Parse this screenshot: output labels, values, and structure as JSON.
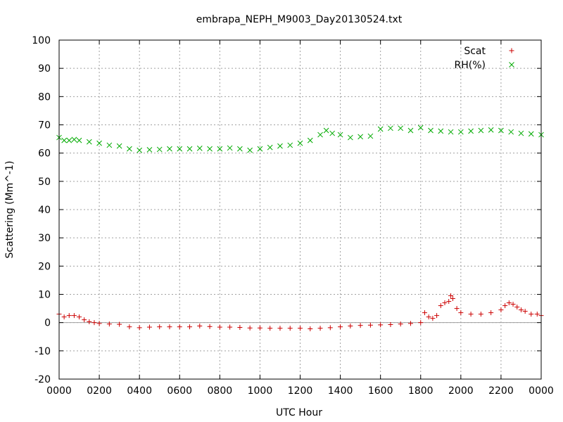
{
  "chart_data": {
    "type": "scatter",
    "title": "embrapa_NEPH_M9003_Day20130524.txt",
    "xlabel": "UTC Hour",
    "ylabel": "Scattering (Mm^-1)",
    "xlim": [
      0,
      24
    ],
    "ylim": [
      -20,
      100
    ],
    "x_ticks": [
      0,
      2,
      4,
      6,
      8,
      10,
      12,
      14,
      16,
      18,
      20,
      22,
      24
    ],
    "x_tick_labels": [
      "0000",
      "0200",
      "0400",
      "0600",
      "0800",
      "1000",
      "1200",
      "1400",
      "1600",
      "1800",
      "2000",
      "2200",
      "0000"
    ],
    "y_ticks": [
      -20,
      -10,
      0,
      10,
      20,
      30,
      40,
      50,
      60,
      70,
      80,
      90,
      100
    ],
    "y_tick_labels": [
      "-20",
      "-10",
      "0",
      "10",
      "20",
      "30",
      "40",
      "50",
      "60",
      "70",
      "80",
      "90",
      "100"
    ],
    "grid": true,
    "zero_line": true,
    "legend_position": "top-right",
    "series": [
      {
        "name": "Scat",
        "marker": "plus",
        "color": "#cc0000",
        "x": [
          0.0,
          0.25,
          0.5,
          0.75,
          1.0,
          1.25,
          1.5,
          1.75,
          2.0,
          2.5,
          3.0,
          3.5,
          4.0,
          4.5,
          5.0,
          5.5,
          6.0,
          6.5,
          7.0,
          7.5,
          8.0,
          8.5,
          9.0,
          9.5,
          10.0,
          10.5,
          11.0,
          11.5,
          12.0,
          12.5,
          13.0,
          13.5,
          14.0,
          14.5,
          15.0,
          15.5,
          16.0,
          16.5,
          17.0,
          17.5,
          18.0,
          18.2,
          18.4,
          18.6,
          18.8,
          19.0,
          19.2,
          19.4,
          19.5,
          19.6,
          19.8,
          20.0,
          20.5,
          21.0,
          21.5,
          22.0,
          22.2,
          22.4,
          22.6,
          22.8,
          23.0,
          23.2,
          23.5,
          23.8,
          24.0
        ],
        "y": [
          3.0,
          2.0,
          2.5,
          2.5,
          2.0,
          1.0,
          0.3,
          0.0,
          -0.3,
          -0.5,
          -0.6,
          -1.5,
          -1.8,
          -1.6,
          -1.5,
          -1.5,
          -1.5,
          -1.5,
          -1.2,
          -1.4,
          -1.6,
          -1.6,
          -1.7,
          -1.9,
          -1.9,
          -2.0,
          -2.0,
          -2.0,
          -2.0,
          -2.2,
          -2.0,
          -1.8,
          -1.5,
          -1.2,
          -1.0,
          -0.9,
          -0.8,
          -0.7,
          -0.5,
          -0.3,
          0.0,
          3.5,
          2.0,
          1.5,
          2.5,
          6.0,
          7.0,
          7.5,
          9.5,
          8.5,
          5.0,
          3.5,
          3.0,
          3.0,
          3.5,
          4.5,
          6.0,
          7.0,
          6.5,
          5.5,
          4.5,
          4.0,
          3.0,
          3.0,
          2.5
        ]
      },
      {
        "name": "RH(%)",
        "marker": "cross",
        "color": "#00aa00",
        "x": [
          0.0,
          0.25,
          0.5,
          0.75,
          1.0,
          1.5,
          2.0,
          2.5,
          3.0,
          3.5,
          4.0,
          4.5,
          5.0,
          5.5,
          6.0,
          6.5,
          7.0,
          7.5,
          8.0,
          8.5,
          9.0,
          9.5,
          10.0,
          10.5,
          11.0,
          11.5,
          12.0,
          12.5,
          13.0,
          13.3,
          13.6,
          14.0,
          14.5,
          15.0,
          15.5,
          16.0,
          16.5,
          17.0,
          17.5,
          18.0,
          18.5,
          19.0,
          19.5,
          20.0,
          20.5,
          21.0,
          21.5,
          22.0,
          22.5,
          23.0,
          23.5,
          24.0
        ],
        "y": [
          65.5,
          64.5,
          64.5,
          64.8,
          64.5,
          64.0,
          63.5,
          62.8,
          62.5,
          61.5,
          61.0,
          61.2,
          61.3,
          61.5,
          61.5,
          61.5,
          61.7,
          61.5,
          61.5,
          61.8,
          61.5,
          61.0,
          61.5,
          62.0,
          62.5,
          62.8,
          63.5,
          64.5,
          66.5,
          68.0,
          67.0,
          66.5,
          65.5,
          65.8,
          66.0,
          68.5,
          68.8,
          68.8,
          68.0,
          69.0,
          68.0,
          67.8,
          67.5,
          67.5,
          67.8,
          68.0,
          68.2,
          68.0,
          67.5,
          67.0,
          66.8,
          66.5
        ]
      }
    ]
  }
}
